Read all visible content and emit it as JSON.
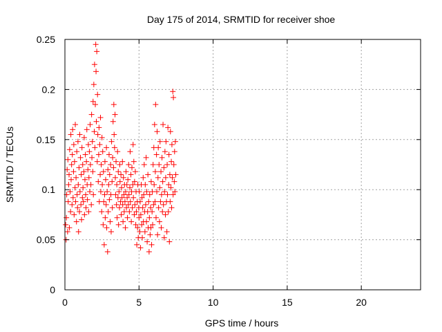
{
  "chart_data": {
    "type": "scatter",
    "title": "Day 175 of 2014, SRMTID for receiver shoe",
    "xlabel": "GPS time / hours",
    "ylabel": "SRMTID / TECUs",
    "xlim": [
      0,
      24
    ],
    "ylim": [
      0,
      0.25
    ],
    "xticks": [
      0,
      5,
      10,
      15,
      20
    ],
    "yticks": [
      0,
      0.05,
      0.1,
      0.15,
      0.2,
      0.25
    ],
    "ytick_labels": [
      "0",
      "0.05",
      "0.1",
      "0.15",
      "0.2",
      "0.25"
    ],
    "grid": true,
    "marker": "+",
    "color": "#ff0000",
    "series": [
      {
        "name": "SRMTID",
        "points": [
          [
            0.05,
            0.065
          ],
          [
            0.08,
            0.05
          ],
          [
            0.1,
            0.072
          ],
          [
            0.12,
            0.095
          ],
          [
            0.15,
            0.12
          ],
          [
            0.18,
            0.058
          ],
          [
            0.2,
            0.13
          ],
          [
            0.22,
            0.088
          ],
          [
            0.25,
            0.105
          ],
          [
            0.28,
            0.115
          ],
          [
            0.3,
            0.062
          ],
          [
            0.32,
            0.14
          ],
          [
            0.35,
            0.098
          ],
          [
            0.38,
            0.078
          ],
          [
            0.4,
            0.155
          ],
          [
            0.42,
            0.11
          ],
          [
            0.45,
            0.125
          ],
          [
            0.48,
            0.085
          ],
          [
            0.5,
            0.135
          ],
          [
            0.52,
            0.16
          ],
          [
            0.55,
            0.092
          ],
          [
            0.58,
            0.118
          ],
          [
            0.6,
            0.145
          ],
          [
            0.62,
            0.075
          ],
          [
            0.65,
            0.128
          ],
          [
            0.68,
            0.102
          ],
          [
            0.7,
            0.165
          ],
          [
            0.72,
            0.088
          ],
          [
            0.75,
            0.112
          ],
          [
            0.78,
            0.068
          ],
          [
            0.8,
            0.138
          ],
          [
            0.82,
            0.095
          ],
          [
            0.85,
            0.082
          ],
          [
            0.88,
            0.148
          ],
          [
            0.9,
            0.105
          ],
          [
            0.92,
            0.058
          ],
          [
            0.95,
            0.122
          ],
          [
            0.98,
            0.078
          ],
          [
            1.0,
            0.155
          ],
          [
            1.02,
            0.098
          ],
          [
            1.05,
            0.132
          ],
          [
            1.08,
            0.085
          ],
          [
            1.1,
            0.115
          ],
          [
            1.12,
            0.07
          ],
          [
            1.15,
            0.142
          ],
          [
            1.18,
            0.092
          ],
          [
            1.2,
            0.125
          ],
          [
            1.22,
            0.102
          ],
          [
            1.25,
            0.088
          ],
          [
            1.28,
            0.118
          ],
          [
            1.3,
            0.152
          ],
          [
            1.32,
            0.075
          ],
          [
            1.35,
            0.11
          ],
          [
            1.38,
            0.135
          ],
          [
            1.4,
            0.095
          ],
          [
            1.42,
            0.082
          ],
          [
            1.45,
            0.128
          ],
          [
            1.48,
            0.16
          ],
          [
            1.5,
            0.105
          ],
          [
            1.52,
            0.09
          ],
          [
            1.55,
            0.12
          ],
          [
            1.58,
            0.145
          ],
          [
            1.6,
            0.078
          ],
          [
            1.62,
            0.112
          ],
          [
            1.65,
            0.138
          ],
          [
            1.68,
            0.098
          ],
          [
            1.7,
            0.165
          ],
          [
            1.72,
            0.125
          ],
          [
            1.75,
            0.105
          ],
          [
            1.78,
            0.085
          ],
          [
            1.8,
            0.175
          ],
          [
            1.82,
            0.132
          ],
          [
            1.85,
            0.148
          ],
          [
            1.88,
            0.118
          ],
          [
            1.9,
            0.188
          ],
          [
            1.92,
            0.095
          ],
          [
            1.95,
            0.205
          ],
          [
            1.98,
            0.158
          ],
          [
            2.0,
            0.225
          ],
          [
            2.02,
            0.142
          ],
          [
            2.05,
            0.185
          ],
          [
            2.08,
            0.245
          ],
          [
            2.1,
            0.218
          ],
          [
            2.12,
            0.168
          ],
          [
            2.15,
            0.238
          ],
          [
            2.18,
            0.128
          ],
          [
            2.2,
            0.195
          ],
          [
            2.22,
            0.155
          ],
          [
            2.25,
            0.108
          ],
          [
            2.28,
            0.135
          ],
          [
            2.3,
            0.162
          ],
          [
            2.32,
            0.088
          ],
          [
            2.35,
            0.145
          ],
          [
            2.38,
            0.115
          ],
          [
            2.4,
            0.172
          ],
          [
            2.42,
            0.098
          ],
          [
            2.45,
            0.125
          ],
          [
            2.48,
            0.078
          ],
          [
            2.5,
            0.152
          ],
          [
            2.52,
            0.105
          ],
          [
            2.55,
            0.138
          ],
          [
            2.58,
            0.065
          ],
          [
            2.6,
            0.118
          ],
          [
            2.62,
            0.088
          ],
          [
            2.65,
            0.045
          ],
          [
            2.68,
            0.095
          ],
          [
            2.7,
            0.128
          ],
          [
            2.72,
            0.072
          ],
          [
            2.75,
            0.11
          ],
          [
            2.78,
            0.085
          ],
          [
            2.8,
            0.142
          ],
          [
            2.82,
            0.062
          ],
          [
            2.85,
            0.098
          ],
          [
            2.88,
            0.038
          ],
          [
            2.9,
            0.12
          ],
          [
            2.92,
            0.078
          ],
          [
            2.95,
            0.105
          ],
          [
            2.98,
            0.135
          ],
          [
            3.0,
            0.09
          ],
          [
            3.02,
            0.115
          ],
          [
            3.05,
            0.068
          ],
          [
            3.08,
            0.125
          ],
          [
            3.1,
            0.095
          ],
          [
            3.12,
            0.058
          ],
          [
            3.15,
            0.148
          ],
          [
            3.18,
            0.108
          ],
          [
            3.2,
            0.082
          ],
          [
            3.22,
            0.132
          ],
          [
            3.25,
            0.168
          ],
          [
            3.28,
            0.122
          ],
          [
            3.3,
            0.185
          ],
          [
            3.32,
            0.155
          ],
          [
            3.35,
            0.142
          ],
          [
            3.38,
            0.175
          ],
          [
            3.4,
            0.112
          ],
          [
            3.42,
            0.095
          ],
          [
            3.45,
            0.128
          ],
          [
            3.48,
            0.085
          ],
          [
            3.5,
            0.105
          ],
          [
            3.52,
            0.072
          ],
          [
            3.55,
            0.138
          ],
          [
            3.58,
            0.092
          ],
          [
            3.6,
            0.118
          ],
          [
            3.62,
            0.065
          ],
          [
            3.65,
            0.098
          ],
          [
            3.68,
            0.082
          ],
          [
            3.7,
            0.125
          ],
          [
            3.72,
            0.108
          ],
          [
            3.75,
            0.088
          ],
          [
            3.78,
            0.115
          ],
          [
            3.8,
            0.075
          ],
          [
            3.82,
            0.102
          ],
          [
            3.85,
            0.092
          ],
          [
            3.88,
            0.128
          ],
          [
            3.9,
            0.085
          ],
          [
            3.92,
            0.068
          ],
          [
            3.95,
            0.112
          ],
          [
            3.98,
            0.095
          ],
          [
            4.0,
            0.078
          ],
          [
            4.02,
            0.105
          ],
          [
            4.05,
            0.088
          ],
          [
            4.08,
            0.062
          ],
          [
            4.1,
            0.098
          ],
          [
            4.12,
            0.118
          ],
          [
            4.15,
            0.082
          ],
          [
            4.18,
            0.105
          ],
          [
            4.2,
            0.092
          ],
          [
            4.22,
            0.072
          ],
          [
            4.25,
            0.11
          ],
          [
            4.28,
            0.085
          ],
          [
            4.3,
            0.125
          ],
          [
            4.32,
            0.095
          ],
          [
            4.35,
            0.078
          ],
          [
            4.38,
            0.102
          ],
          [
            4.4,
            0.138
          ],
          [
            4.42,
            0.088
          ],
          [
            4.45,
            0.115
          ],
          [
            4.48,
            0.068
          ],
          [
            4.5,
            0.098
          ],
          [
            4.52,
            0.122
          ],
          [
            4.55,
            0.082
          ],
          [
            4.58,
            0.105
          ],
          [
            4.6,
            0.145
          ],
          [
            4.62,
            0.092
          ],
          [
            4.65,
            0.128
          ],
          [
            4.68,
            0.075
          ],
          [
            4.7,
            0.108
          ],
          [
            4.72,
            0.085
          ],
          [
            4.75,
            0.118
          ],
          [
            4.78,
            0.065
          ],
          [
            4.8,
            0.098
          ],
          [
            4.82,
            0.078
          ],
          [
            4.85,
            0.045
          ],
          [
            4.88,
            0.088
          ],
          [
            4.9,
            0.062
          ],
          [
            4.92,
            0.105
          ],
          [
            4.95,
            0.052
          ],
          [
            4.98,
            0.082
          ],
          [
            5.0,
            0.072
          ],
          [
            5.02,
            0.098
          ],
          [
            5.05,
            0.058
          ],
          [
            5.08,
            0.088
          ],
          [
            5.1,
            0.042
          ],
          [
            5.12,
            0.075
          ],
          [
            5.15,
            0.105
          ],
          [
            5.18,
            0.065
          ],
          [
            5.2,
            0.092
          ],
          [
            5.22,
            0.052
          ],
          [
            5.25,
            0.082
          ],
          [
            5.28,
            0.112
          ],
          [
            5.3,
            0.068
          ],
          [
            5.32,
            0.095
          ],
          [
            5.35,
            0.125
          ],
          [
            5.38,
            0.078
          ],
          [
            5.4,
            0.058
          ],
          [
            5.42,
            0.105
          ],
          [
            5.45,
            0.085
          ],
          [
            5.48,
            0.132
          ],
          [
            5.5,
            0.068
          ],
          [
            5.52,
            0.098
          ],
          [
            5.55,
            0.048
          ],
          [
            5.58,
            0.078
          ],
          [
            5.6,
            0.115
          ],
          [
            5.62,
            0.062
          ],
          [
            5.65,
            0.088
          ],
          [
            5.68,
            0.038
          ],
          [
            5.7,
            0.072
          ],
          [
            5.72,
            0.095
          ],
          [
            5.75,
            0.055
          ],
          [
            5.78,
            0.082
          ],
          [
            5.8,
            0.062
          ],
          [
            5.82,
            0.108
          ],
          [
            5.85,
            0.045
          ],
          [
            5.88,
            0.078
          ],
          [
            5.9,
            0.098
          ],
          [
            5.92,
            0.065
          ],
          [
            5.95,
            0.125
          ],
          [
            5.98,
            0.085
          ],
          [
            6.0,
            0.142
          ],
          [
            6.02,
            0.105
          ],
          [
            6.05,
            0.165
          ],
          [
            6.08,
            0.088
          ],
          [
            6.1,
            0.118
          ],
          [
            6.12,
            0.185
          ],
          [
            6.15,
            0.072
          ],
          [
            6.18,
            0.135
          ],
          [
            6.2,
            0.098
          ],
          [
            6.22,
            0.158
          ],
          [
            6.25,
            0.055
          ],
          [
            6.28,
            0.112
          ],
          [
            6.3,
            0.142
          ],
          [
            6.32,
            0.082
          ],
          [
            6.35,
            0.125
          ],
          [
            6.38,
            0.068
          ],
          [
            6.4,
            0.102
          ],
          [
            6.42,
            0.148
          ],
          [
            6.45,
            0.088
          ],
          [
            6.48,
            0.118
          ],
          [
            6.5,
            0.062
          ],
          [
            6.52,
            0.095
          ],
          [
            6.55,
            0.132
          ],
          [
            6.58,
            0.078
          ],
          [
            6.6,
            0.108
          ],
          [
            6.62,
            0.165
          ],
          [
            6.65,
            0.085
          ],
          [
            6.68,
            0.122
          ],
          [
            6.7,
            0.052
          ],
          [
            6.72,
            0.098
          ],
          [
            6.75,
            0.138
          ],
          [
            6.78,
            0.075
          ],
          [
            6.8,
            0.112
          ],
          [
            6.82,
            0.148
          ],
          [
            6.85,
            0.088
          ],
          [
            6.88,
            0.058
          ],
          [
            6.9,
            0.125
          ],
          [
            6.92,
            0.095
          ],
          [
            6.95,
            0.162
          ],
          [
            6.98,
            0.078
          ],
          [
            7.0,
            0.105
          ],
          [
            7.02,
            0.135
          ],
          [
            7.05,
            0.048
          ],
          [
            7.08,
            0.115
          ],
          [
            7.1,
            0.088
          ],
          [
            7.12,
            0.158
          ],
          [
            7.15,
            0.102
          ],
          [
            7.18,
            0.128
          ],
          [
            7.2,
            0.082
          ],
          [
            7.22,
            0.145
          ],
          [
            7.25,
            0.112
          ],
          [
            7.28,
            0.198
          ],
          [
            7.3,
            0.095
          ],
          [
            7.32,
            0.192
          ],
          [
            7.35,
            0.125
          ],
          [
            7.38,
            0.108
          ],
          [
            7.4,
            0.138
          ],
          [
            7.42,
            0.098
          ],
          [
            7.45,
            0.148
          ],
          [
            7.48,
            0.115
          ]
        ]
      }
    ]
  }
}
